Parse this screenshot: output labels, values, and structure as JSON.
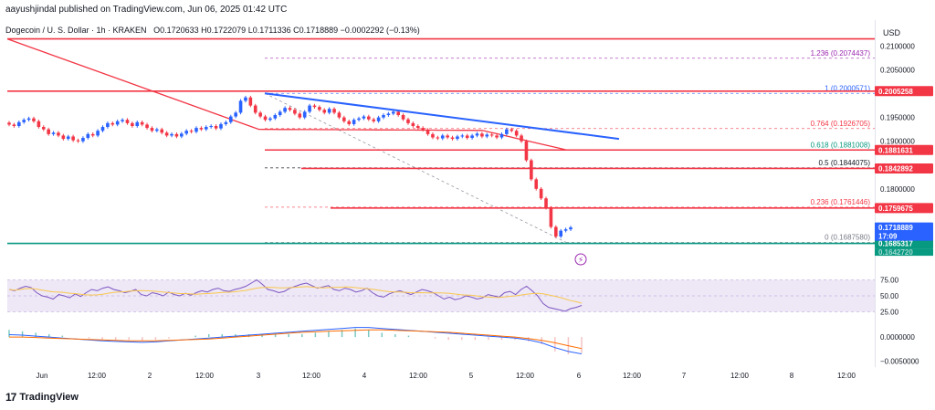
{
  "header": {
    "publisher_line": "aayushjindal published on TradingView.com, Jun 06, 2025 01:42 UTC"
  },
  "symbol": {
    "title": "Dogecoin / U. S. Dollar · 1h · KRAKEN",
    "open": "O0.1720633",
    "high": "H0.1722079",
    "low": "L0.1711336",
    "close": "C0.1718889",
    "change": "−0.0002292 (−0.13%)"
  },
  "axis": {
    "currency": "USD"
  },
  "footer": {
    "brand": "TradingView",
    "logo_glyph": "17"
  },
  "colors": {
    "up": "#2962ff",
    "down": "#f23645",
    "red_line": "#f23645",
    "blue_line": "#2962ff",
    "support_green": "#089981",
    "rsi_fill": "#ede7f6",
    "fib_teal": "#089981",
    "fib_red": "#f23645",
    "fib_gray": "#787b86",
    "fib_blue": "#2962ff"
  },
  "chart_data": {
    "type": "candlestick",
    "ylim": [
      0.165,
      0.212
    ],
    "price_ticks": [
      "0.2100000",
      "0.2050000",
      "0.1950000",
      "0.1900000",
      "0.1800000"
    ],
    "x_tick_labels": [
      "Jun",
      "12:00",
      "2",
      "12:00",
      "3",
      "12:00",
      "4",
      "12:00",
      "5",
      "12:00",
      "6",
      "12:00",
      "7",
      "12:00",
      "8",
      "12:00"
    ],
    "closes": [
      0.1935,
      0.1932,
      0.194,
      0.1945,
      0.1948,
      0.1942,
      0.193,
      0.1925,
      0.1915,
      0.1918,
      0.1912,
      0.1905,
      0.191,
      0.1902,
      0.19,
      0.1907,
      0.1915,
      0.1912,
      0.1922,
      0.193,
      0.1938,
      0.1935,
      0.1942,
      0.1945,
      0.1938,
      0.1932,
      0.194,
      0.1935,
      0.1928,
      0.1922,
      0.1925,
      0.1918,
      0.1912,
      0.1915,
      0.191,
      0.1916,
      0.1922,
      0.192,
      0.1928,
      0.1925,
      0.193,
      0.1932,
      0.1927,
      0.1936,
      0.194,
      0.1952,
      0.196,
      0.1985,
      0.1992,
      0.1975,
      0.196,
      0.1952,
      0.1945,
      0.1948,
      0.1955,
      0.1962,
      0.197,
      0.1966,
      0.1958,
      0.195,
      0.1962,
      0.1975,
      0.1972,
      0.1966,
      0.196,
      0.1968,
      0.196,
      0.195,
      0.1942,
      0.1936,
      0.1945,
      0.1948,
      0.1952,
      0.1946,
      0.1942,
      0.195,
      0.1955,
      0.1958,
      0.1962,
      0.1955,
      0.1946,
      0.1938,
      0.1932,
      0.1928,
      0.1924,
      0.1915,
      0.1908,
      0.1906,
      0.1912,
      0.1908,
      0.1905,
      0.191,
      0.1912,
      0.1907,
      0.1912,
      0.1916,
      0.191,
      0.1914,
      0.1912,
      0.1908,
      0.1915,
      0.1925,
      0.1922,
      0.1912,
      0.19,
      0.186,
      0.182,
      0.18,
      0.178,
      0.176,
      0.172,
      0.17,
      0.1712,
      0.1715,
      0.1719
    ],
    "ma_line": {
      "name": "",
      "type": "moving-average",
      "color": "#f23645"
    },
    "fib_levels": [
      {
        "ratio": "1.236",
        "label": "1.236 (0.2074437)",
        "price": 0.2074437,
        "color": "#9c27b0"
      },
      {
        "ratio": "1",
        "label": "1 (0.2000571)",
        "price": 0.2000571,
        "color": "#2962ff"
      },
      {
        "ratio": "0.764",
        "label": "0.764 (0.1926705)",
        "price": 0.1926705,
        "color": "#f23645"
      },
      {
        "ratio": "0.618",
        "label": "0.618 (0.1881008)",
        "price": 0.1881008,
        "color": "#089981"
      },
      {
        "ratio": "0.5",
        "label": "0.5 (0.1844075)",
        "price": 0.1844075,
        "color": "#131722"
      },
      {
        "ratio": "0.236",
        "label": "0.236 (0.1761446)",
        "price": 0.1761446,
        "color": "#f23645"
      },
      {
        "ratio": "0",
        "label": "0 (0.1687580)",
        "price": 0.168758,
        "color": "#787b86"
      }
    ],
    "horizontal_lines": [
      {
        "price": 0.2115,
        "color": "#f23645"
      },
      {
        "price": 0.2005258,
        "color": "#f23645",
        "tag": "0.2005258"
      },
      {
        "price": 0.1881631,
        "color": "#f23645",
        "tag": "0.1881631"
      },
      {
        "price": 0.1842892,
        "color": "#f23645",
        "tag": "0.1842892"
      },
      {
        "price": 0.1759675,
        "color": "#f23645",
        "tag": "0.1759675"
      },
      {
        "price": 0.1685317,
        "color": "#089981",
        "tag": "0.1685317"
      }
    ],
    "current_price_tag": {
      "price": 0.1718889,
      "label": "0.1718889",
      "countdown": "17:09",
      "color": "#2962ff"
    },
    "extra_tag": "0.1642720",
    "trendline": {
      "from_price": 0.2000571,
      "to_price": 0.1905,
      "color": "#2962ff"
    },
    "rsi": {
      "ticks": [
        "75.00",
        "50.00",
        "25.00"
      ],
      "values": [
        60,
        58,
        62,
        65,
        63,
        55,
        50,
        48,
        45,
        52,
        50,
        47,
        53,
        49,
        55,
        60,
        58,
        62,
        64,
        60,
        58,
        55,
        57,
        60,
        52,
        50,
        55,
        53,
        50,
        56,
        52,
        50,
        54,
        51,
        55,
        58,
        56,
        60,
        62,
        58,
        57,
        60,
        62,
        65,
        70,
        75,
        68,
        60,
        58,
        55,
        57,
        62,
        65,
        68,
        70,
        66,
        62,
        64,
        66,
        60,
        58,
        62,
        60,
        56,
        58,
        62,
        55,
        50,
        48,
        53,
        56,
        58,
        55,
        52,
        56,
        60,
        58,
        55,
        50,
        45,
        48,
        44,
        46,
        50,
        48,
        45,
        47,
        52,
        50,
        48,
        55,
        57,
        52,
        60,
        65,
        58,
        50,
        38,
        32,
        30,
        28,
        26,
        30,
        32,
        35
      ]
    },
    "macd": {
      "ticks": [
        "0.0000000",
        "−0.0050000"
      ],
      "macd_values": [
        0.0005,
        0.0004,
        0.0002,
        0.0,
        -0.0002,
        -0.0004,
        -0.0006,
        -0.0008,
        -0.0009,
        -0.001,
        -0.0011,
        -0.001,
        -0.0008,
        -0.0006,
        -0.0004,
        -0.0002,
        0.0,
        0.0002,
        0.0004,
        0.0006,
        0.0008,
        0.001,
        0.0012,
        0.0014,
        0.0016,
        0.0018,
        0.002,
        0.002,
        0.0018,
        0.0016,
        0.0014,
        0.0012,
        0.001,
        0.0008,
        0.0006,
        0.0004,
        0.0002,
        0.0,
        -0.0002,
        -0.0006,
        -0.0012,
        -0.0022,
        -0.003,
        -0.0035
      ],
      "signal_values": [
        0.0,
        0.0,
        -0.0001,
        -0.0002,
        -0.0003,
        -0.0004,
        -0.0005,
        -0.0006,
        -0.0007,
        -0.0008,
        -0.0008,
        -0.0008,
        -0.0007,
        -0.0006,
        -0.0005,
        -0.0004,
        -0.0002,
        0.0,
        0.0002,
        0.0004,
        0.0006,
        0.0008,
        0.001,
        0.0011,
        0.0012,
        0.0013,
        0.0014,
        0.0015,
        0.0015,
        0.0014,
        0.0013,
        0.0012,
        0.0011,
        0.001,
        0.0008,
        0.0006,
        0.0004,
        0.0002,
        0.0,
        -0.0003,
        -0.0007,
        -0.0012,
        -0.0018,
        -0.0024
      ]
    }
  }
}
